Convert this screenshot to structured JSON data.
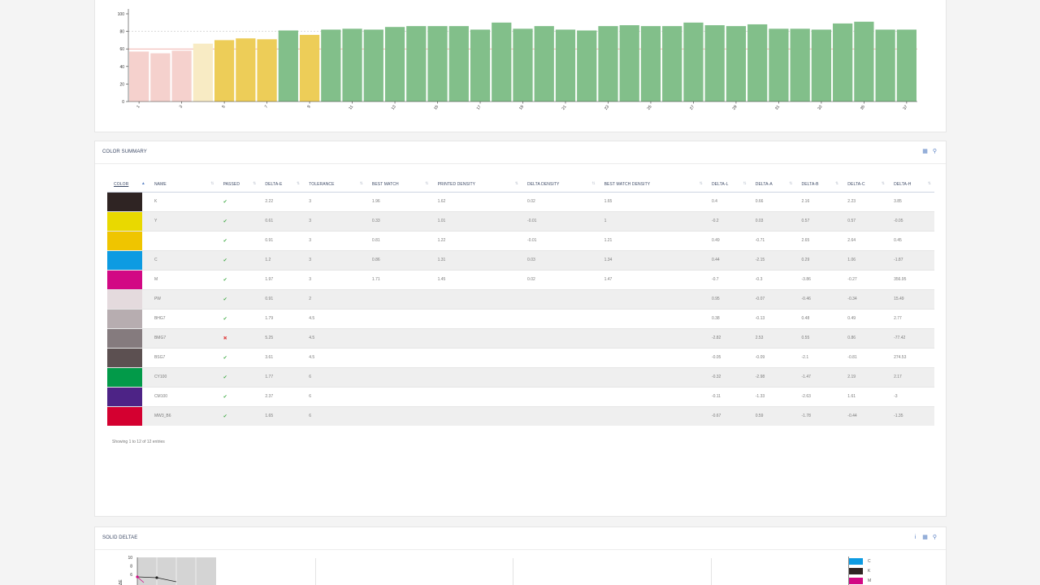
{
  "top_chart": {
    "colors": {
      "fail": "#f5d1cd",
      "near": "#f8ebc4",
      "warn": "#edcd58",
      "pass": "#82bf8a",
      "ref_line": "#e8867c",
      "grid": "#cfcfcf"
    },
    "yticks": [
      "0",
      "20",
      "40",
      "60",
      "80",
      "100"
    ],
    "xticks": [
      "1",
      "3",
      "5",
      "7",
      "9",
      "11",
      "13",
      "15",
      "17",
      "19",
      "21",
      "23",
      "25",
      "27",
      "29",
      "31",
      "33",
      "35",
      "37"
    ],
    "chart_data": {
      "type": "bar",
      "x": [
        1,
        2,
        3,
        4,
        5,
        6,
        7,
        8,
        9,
        10,
        11,
        12,
        13,
        14,
        15,
        16,
        17,
        18,
        19,
        20,
        21,
        22,
        23,
        24,
        25,
        26,
        27,
        28,
        29,
        30,
        31,
        32,
        33,
        34,
        35,
        36,
        37
      ],
      "values": [
        57,
        55,
        58,
        66,
        70,
        72,
        71,
        81,
        76,
        82,
        83,
        82,
        85,
        86,
        86,
        86,
        82,
        90,
        83,
        86,
        82,
        81,
        86,
        87,
        86,
        86,
        90,
        87,
        86,
        88,
        83,
        83,
        82,
        89,
        91,
        82,
        82
      ],
      "status": [
        "fail",
        "fail",
        "fail",
        "near",
        "warn",
        "warn",
        "warn",
        "pass",
        "warn",
        "pass",
        "pass",
        "pass",
        "pass",
        "pass",
        "pass",
        "pass",
        "pass",
        "pass",
        "pass",
        "pass",
        "pass",
        "pass",
        "pass",
        "pass",
        "pass",
        "pass",
        "pass",
        "pass",
        "pass",
        "pass",
        "pass",
        "pass",
        "pass",
        "pass",
        "pass",
        "pass",
        "pass"
      ],
      "ylim": [
        0,
        100
      ],
      "reference_lines": [
        60,
        80
      ]
    }
  },
  "summary": {
    "title": "COLOR SUMMARY",
    "columns": [
      "COLOR",
      "NAME",
      "PASSED",
      "DELTA-E",
      "TOLERANCE",
      "BEST MATCH",
      "PRINTED DENSITY",
      "DELTA DENSITY",
      "BEST MATCH DENSITY",
      "DELTA-L",
      "DELTA-A",
      "DELTA-B",
      "DELTA-C",
      "DELTA-H"
    ],
    "rows": [
      {
        "color": "#2f2423",
        "name": "K",
        "passed": true,
        "de": "2.22",
        "tol": "3",
        "bm": "1.96",
        "pd": "1.62",
        "dd": "0.02",
        "bmd": "1.65",
        "dl": "0.4",
        "da": "0.66",
        "db": "2.16",
        "dc": "2.23",
        "dh": "3.85"
      },
      {
        "color": "#e9d900",
        "name": "Y",
        "passed": true,
        "de": "0.61",
        "tol": "3",
        "bm": "0.33",
        "pd": "1.01",
        "dd": "-0.01",
        "bmd": "1",
        "dl": "-0.2",
        "da": "0.03",
        "db": "0.57",
        "dc": "0.57",
        "dh": "-0.05"
      },
      {
        "color": "#efc500",
        "name": "",
        "passed": true,
        "de": "0.91",
        "tol": "3",
        "bm": "0.81",
        "pd": "1.22",
        "dd": "-0.01",
        "bmd": "1.21",
        "dl": "0.49",
        "da": "-0.71",
        "db": "2.65",
        "dc": "2.64",
        "dh": "0.45"
      },
      {
        "color": "#0d9be2",
        "name": "C",
        "passed": true,
        "de": "1.2",
        "tol": "3",
        "bm": "0.86",
        "pd": "1.31",
        "dd": "0.03",
        "bmd": "1.34",
        "dl": "0.44",
        "da": "-2.15",
        "db": "0.29",
        "dc": "1.06",
        "dh": "-1.87"
      },
      {
        "color": "#d20884",
        "name": "M",
        "passed": true,
        "de": "1.97",
        "tol": "3",
        "bm": "1.71",
        "pd": "1.45",
        "dd": "0.02",
        "bmd": "1.47",
        "dl": "-0.7",
        "da": "-0.3",
        "db": "-3.86",
        "dc": "-0.27",
        "dh": "356.95"
      },
      {
        "color": "#e4dadd",
        "name": "PW",
        "passed": true,
        "de": "0.91",
        "tol": "2",
        "bm": "",
        "pd": "",
        "dd": "",
        "bmd": "",
        "dl": "0.95",
        "da": "-0.07",
        "db": "-0.46",
        "dc": "-0.34",
        "dh": "15.49"
      },
      {
        "color": "#b7adb0",
        "name": "BHG7",
        "passed": true,
        "de": "1.79",
        "tol": "4.5",
        "bm": "",
        "pd": "",
        "dd": "",
        "bmd": "",
        "dl": "0.38",
        "da": "-0.13",
        "db": "0.48",
        "dc": "0.49",
        "dh": "2.77"
      },
      {
        "color": "#857b7e",
        "name": "BMG7",
        "passed": false,
        "de": "5.25",
        "tol": "4.5",
        "bm": "",
        "pd": "",
        "dd": "",
        "bmd": "",
        "dl": "-2.82",
        "da": "2.53",
        "db": "0.55",
        "dc": "0.86",
        "dh": "-77.42"
      },
      {
        "color": "#5c5051",
        "name": "BSG7",
        "passed": true,
        "de": "3.61",
        "tol": "4.5",
        "bm": "",
        "pd": "",
        "dd": "",
        "bmd": "",
        "dl": "-0.05",
        "da": "-0.09",
        "db": "-2.1",
        "dc": "-0.81",
        "dh": "274.53"
      },
      {
        "color": "#029a49",
        "name": "CY100",
        "passed": true,
        "de": "1.77",
        "tol": "6",
        "bm": "",
        "pd": "",
        "dd": "",
        "bmd": "",
        "dl": "-0.32",
        "da": "-2.98",
        "db": "-1.47",
        "dc": "2.19",
        "dh": "2.17"
      },
      {
        "color": "#4d2386",
        "name": "CM100",
        "passed": true,
        "de": "2.37",
        "tol": "6",
        "bm": "",
        "pd": "",
        "dd": "",
        "bmd": "",
        "dl": "-0.11",
        "da": "-1.33",
        "db": "-2.63",
        "dc": "1.61",
        "dh": "-3"
      },
      {
        "color": "#d40030",
        "name": "MW3_B6",
        "passed": true,
        "de": "1.65",
        "tol": "6",
        "bm": "",
        "pd": "",
        "dd": "",
        "bmd": "",
        "dl": "-0.67",
        "da": "0.59",
        "db": "-1.78",
        "dc": "-0.44",
        "dh": "-1.35"
      }
    ],
    "info": "Showing 1 to 12 of 12 entries"
  },
  "deltae": {
    "title": "SOLID DELTAE",
    "ylabel": "ΔE",
    "yticks": [
      "10",
      "8",
      "6"
    ],
    "legend": [
      {
        "label": "C",
        "color": "#0d9be2"
      },
      {
        "label": "K",
        "color": "#2f2423"
      },
      {
        "label": "M",
        "color": "#d20884"
      }
    ]
  },
  "icons": {
    "table": "table-icon",
    "zoom": "zoom-icon",
    "info": "info-icon",
    "check": "check-icon",
    "cross": "cross-icon",
    "sort": "sort-icon"
  }
}
